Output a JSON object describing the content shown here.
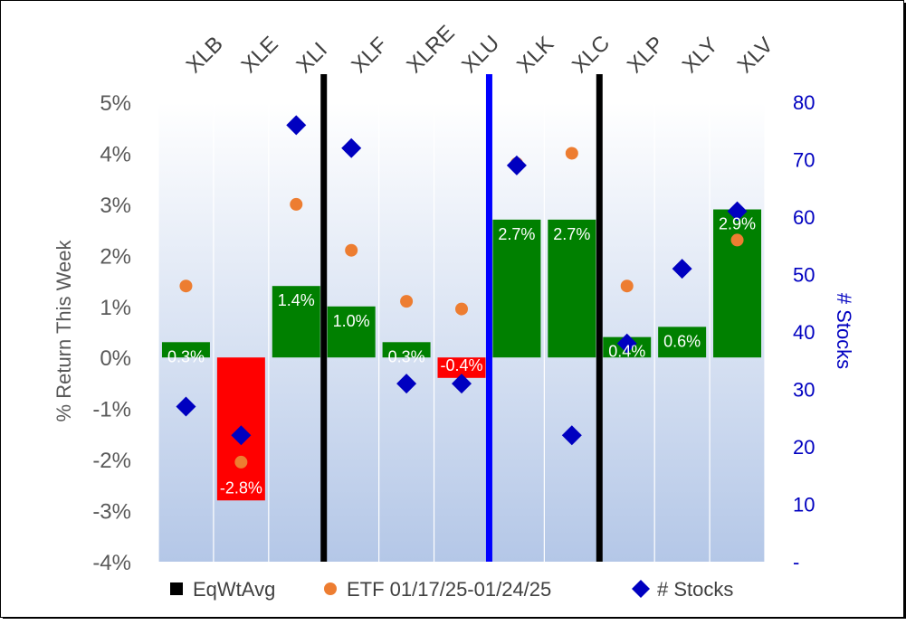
{
  "chart_data": {
    "type": "bar",
    "categories": [
      "XLB",
      "XLE",
      "XLI",
      "XLF",
      "XLRE",
      "XLU",
      "XLK",
      "XLC",
      "XLP",
      "XLY",
      "XLV"
    ],
    "series": [
      {
        "name": "EqWtAvg",
        "kind": "bar",
        "axis": "left",
        "values": [
          0.3,
          -2.8,
          1.4,
          1.0,
          0.3,
          -0.4,
          2.7,
          2.7,
          0.4,
          0.6,
          2.9
        ],
        "labels": [
          "0.3%",
          "-2.8%",
          "1.4%",
          "1.0%",
          "0.3%",
          "-0.4%",
          "2.7%",
          "2.7%",
          "0.4%",
          "0.6%",
          "2.9%"
        ],
        "positive_color": "#008000",
        "negative_color": "#ff0000"
      },
      {
        "name": "ETF 01/17/25-01/24/25",
        "kind": "scatter",
        "marker": "circle",
        "axis": "left",
        "color": "#ed7d31",
        "values": [
          1.4,
          -2.05,
          3.0,
          2.1,
          1.1,
          0.95,
          3.8,
          4.0,
          1.4,
          1.75,
          2.3
        ]
      },
      {
        "name": "# Stocks",
        "kind": "scatter",
        "marker": "diamond",
        "axis": "right",
        "color": "#0000c0",
        "values": [
          27,
          22,
          76,
          72,
          31,
          31,
          69,
          22,
          38,
          51,
          61
        ]
      }
    ],
    "ylabel": "% Return This Week",
    "y2label": "# Stocks",
    "ylim": [
      -4,
      5
    ],
    "y2lim": [
      0,
      80
    ],
    "yticks": [
      "5%",
      "4%",
      "3%",
      "2%",
      "1%",
      "0%",
      "-1%",
      "-2%",
      "-3%",
      "-4%"
    ],
    "y2ticks": [
      "80",
      "70",
      "60",
      "50",
      "40",
      "30",
      "20",
      "10",
      "-"
    ],
    "dividers": [
      {
        "after_category_index": 2,
        "color": "#000000"
      },
      {
        "after_category_index": 5,
        "color": "#0000ff"
      },
      {
        "after_category_index": 7,
        "color": "#000000"
      }
    ],
    "grid": "vertical",
    "legend_position": "bottom",
    "legend": [
      {
        "label": "EqWtAvg",
        "marker": "square",
        "color": "#000000"
      },
      {
        "label": "ETF 01/17/25-01/24/25",
        "marker": "circle",
        "color": "#ed7d31"
      },
      {
        "label": "# Stocks",
        "marker": "diamond",
        "color": "#0000c0"
      }
    ],
    "colors": {
      "plot_top": "#ffffff",
      "plot_bottom": "#b4c7e7",
      "left_axis_text": "#595959",
      "right_axis_text": "#0000c0"
    }
  }
}
